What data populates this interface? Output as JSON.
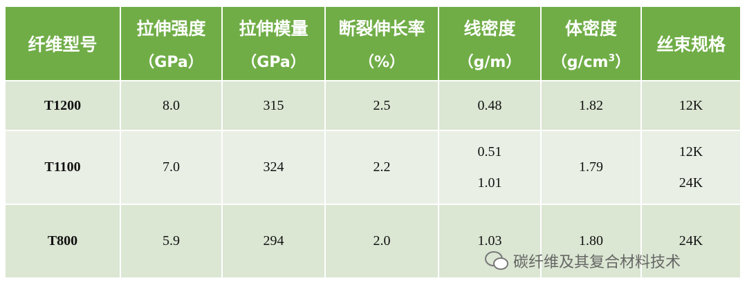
{
  "table": {
    "header": [
      {
        "title": "纤维型号"
      },
      {
        "title": "拉伸强度",
        "unit": "（GPa）"
      },
      {
        "title": "拉伸模量",
        "unit": "（GPa）"
      },
      {
        "title": "断裂伸长率",
        "unit": "（%）"
      },
      {
        "title": "线密度",
        "unit": "（g/m）"
      },
      {
        "title": "体密度",
        "unit": "（g/cm",
        "sup": "3",
        "unit_end": "）"
      },
      {
        "title": "丝束规格"
      }
    ],
    "rows": [
      [
        [
          "T1200"
        ],
        [
          "8.0"
        ],
        [
          "315"
        ],
        [
          "2.5"
        ],
        [
          "0.48"
        ],
        [
          "1.82"
        ],
        [
          "12K"
        ]
      ],
      [
        [
          "T1100"
        ],
        [
          "7.0"
        ],
        [
          "324"
        ],
        [
          "2.2"
        ],
        [
          "0.51",
          "1.01"
        ],
        [
          "1.79"
        ],
        [
          "12K",
          "24K"
        ]
      ],
      [
        [
          "T800"
        ],
        [
          "5.9"
        ],
        [
          "294"
        ],
        [
          "2.0"
        ],
        [
          "1.03"
        ],
        [
          "1.80"
        ],
        [
          "24K"
        ]
      ]
    ]
  },
  "watermark": "碳纤维及其复合材料技术"
}
